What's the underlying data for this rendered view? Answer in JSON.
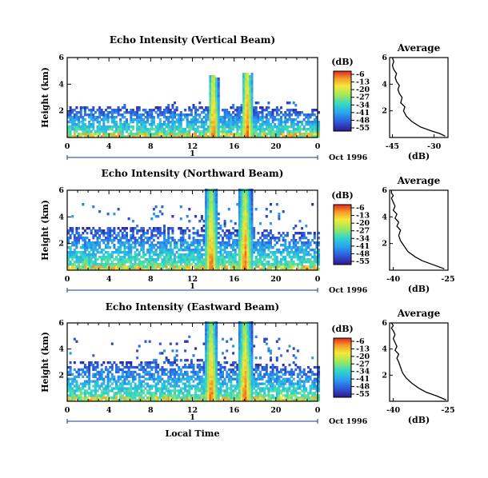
{
  "figure": {
    "xlabel": "Local Time",
    "date_label": "Oct 1996",
    "unit_label": "(dB)",
    "avg_title": "Average",
    "avg_xlabel": "(dB)"
  },
  "chart_data": [
    {
      "type": "heatmap",
      "title": "Echo Intensity (Vertical Beam)",
      "xlabel": "Local Time",
      "ylabel": "Height (km)",
      "xlim": [
        0,
        24
      ],
      "ylim": [
        0,
        6
      ],
      "x_ticks": [
        "0",
        "4",
        "8",
        "12",
        "16",
        "20",
        "0"
      ],
      "x_tick_values": [
        0,
        4,
        8,
        12,
        16,
        20,
        24
      ],
      "y_ticks": [
        "6",
        "4",
        "2"
      ],
      "y_tick_values": [
        6,
        4,
        2
      ],
      "day_label": "1",
      "date_label": "Oct 1996",
      "colorbar": {
        "label": "(dB)",
        "ticks": [
          "-6",
          "-13",
          "-20",
          "-27",
          "-34",
          "-41",
          "-48",
          "-55"
        ],
        "range": [
          -55,
          -6
        ]
      },
      "rain_events_hours": [
        [
          13.6,
          14.4
        ],
        [
          16.8,
          17.7
        ]
      ],
      "boundary_layer_top_km": [
        [
          0,
          2.2
        ],
        [
          12,
          2.3
        ],
        [
          24,
          2.1
        ]
      ]
    },
    {
      "type": "heatmap",
      "title": "Echo Intensity (Northward Beam)",
      "xlabel": "Local Time",
      "ylabel": "Height (km)",
      "xlim": [
        0,
        24
      ],
      "ylim": [
        0,
        6
      ],
      "x_ticks": [
        "0",
        "4",
        "8",
        "12",
        "16",
        "20",
        "0"
      ],
      "x_tick_values": [
        0,
        4,
        8,
        12,
        16,
        20,
        24
      ],
      "y_ticks": [
        "6",
        "4",
        "2"
      ],
      "y_tick_values": [
        6,
        4,
        2
      ],
      "day_label": "1",
      "date_label": "Oct 1996",
      "colorbar": {
        "label": "(dB)",
        "ticks": [
          "-6",
          "-13",
          "-20",
          "-27",
          "-34",
          "-41",
          "-48",
          "-55"
        ],
        "range": [
          -55,
          -6
        ]
      },
      "rain_events_hours": [
        [
          13.3,
          14.3
        ],
        [
          16.5,
          17.6
        ]
      ],
      "boundary_layer_top_km": [
        [
          0,
          3.1
        ],
        [
          12,
          3.2
        ],
        [
          24,
          2.7
        ]
      ]
    },
    {
      "type": "heatmap",
      "title": "Echo Intensity (Eastward Beam)",
      "xlabel": "Local Time",
      "ylabel": "Height (km)",
      "xlim": [
        0,
        24
      ],
      "ylim": [
        0,
        6
      ],
      "x_ticks": [
        "0",
        "4",
        "8",
        "12",
        "16",
        "20",
        "0"
      ],
      "x_tick_values": [
        0,
        4,
        8,
        12,
        16,
        20,
        24
      ],
      "y_ticks": [
        "6",
        "4",
        "2"
      ],
      "y_tick_values": [
        6,
        4,
        2
      ],
      "day_label": "1",
      "date_label": "Oct 1996",
      "colorbar": {
        "label": "(dB)",
        "ticks": [
          "-6",
          "-13",
          "-20",
          "-27",
          "-34",
          "-41",
          "-48",
          "-55"
        ],
        "range": [
          -55,
          -6
        ]
      },
      "rain_events_hours": [
        [
          13.3,
          14.3
        ],
        [
          16.5,
          17.6
        ]
      ],
      "boundary_layer_top_km": [
        [
          0,
          2.9
        ],
        [
          12,
          3.1
        ],
        [
          24,
          2.6
        ]
      ]
    },
    {
      "type": "line",
      "title": "Average",
      "xlabel": "(dB)",
      "xlim": [
        -46,
        -25
      ],
      "ylim": [
        0,
        6
      ],
      "x_ticks": [
        "-45",
        "-30"
      ],
      "x_tick_values": [
        -45,
        -30
      ],
      "y_ticks": [
        "6",
        "4",
        "2"
      ],
      "y_tick_values": [
        6,
        4,
        2
      ],
      "series": [
        {
          "x": [
            -26,
            -28,
            -31,
            -35,
            -38,
            -40,
            -41,
            -40.5,
            -42,
            -41.5,
            -42.5,
            -43,
            -42.5,
            -43.5,
            -44,
            -43.5,
            -44.5,
            -45,
            -44.5,
            -45
          ],
          "y": [
            0.1,
            0.3,
            0.5,
            0.8,
            1.2,
            1.6,
            2.0,
            2.3,
            2.6,
            3.0,
            3.3,
            3.6,
            3.9,
            4.2,
            4.5,
            4.8,
            5.1,
            5.4,
            5.7,
            6.0
          ]
        }
      ]
    },
    {
      "type": "line",
      "title": "Average",
      "xlabel": "(dB)",
      "xlim": [
        -41,
        -25
      ],
      "ylim": [
        0,
        6
      ],
      "x_ticks": [
        "-40",
        "-25"
      ],
      "x_tick_values": [
        -40,
        -25
      ],
      "y_ticks": [
        "6",
        "4",
        "2"
      ],
      "y_tick_values": [
        6,
        4,
        2
      ],
      "series": [
        {
          "x": [
            -26,
            -29,
            -32,
            -34,
            -36,
            -37,
            -38,
            -38.5,
            -38,
            -39,
            -38.5,
            -39.5,
            -39,
            -40,
            -39.5,
            -40,
            -40.5,
            -40,
            -40.5,
            -40.5
          ],
          "y": [
            0.1,
            0.4,
            0.7,
            1.0,
            1.4,
            1.8,
            2.2,
            2.6,
            3.0,
            3.3,
            3.6,
            3.9,
            4.2,
            4.5,
            4.8,
            5.1,
            5.4,
            5.6,
            5.8,
            6.0
          ]
        }
      ]
    },
    {
      "type": "line",
      "title": "Average",
      "xlabel": "(dB)",
      "xlim": [
        -41,
        -25
      ],
      "ylim": [
        0,
        6
      ],
      "x_ticks": [
        "-40",
        "-25"
      ],
      "x_tick_values": [
        -40,
        -25
      ],
      "y_ticks": [
        "6",
        "4",
        "2"
      ],
      "y_tick_values": [
        6,
        4,
        2
      ],
      "series": [
        {
          "x": [
            -25.5,
            -28,
            -31,
            -33,
            -35,
            -36.5,
            -37.5,
            -38,
            -38.5,
            -39,
            -38.5,
            -39.5,
            -39,
            -39.5,
            -40,
            -39.5,
            -40,
            -40.5,
            -40,
            -40.5
          ],
          "y": [
            0.1,
            0.4,
            0.7,
            1.0,
            1.4,
            1.8,
            2.2,
            2.6,
            3.0,
            3.3,
            3.6,
            3.9,
            4.2,
            4.5,
            4.8,
            5.1,
            5.4,
            5.6,
            5.8,
            6.0
          ]
        }
      ]
    }
  ]
}
